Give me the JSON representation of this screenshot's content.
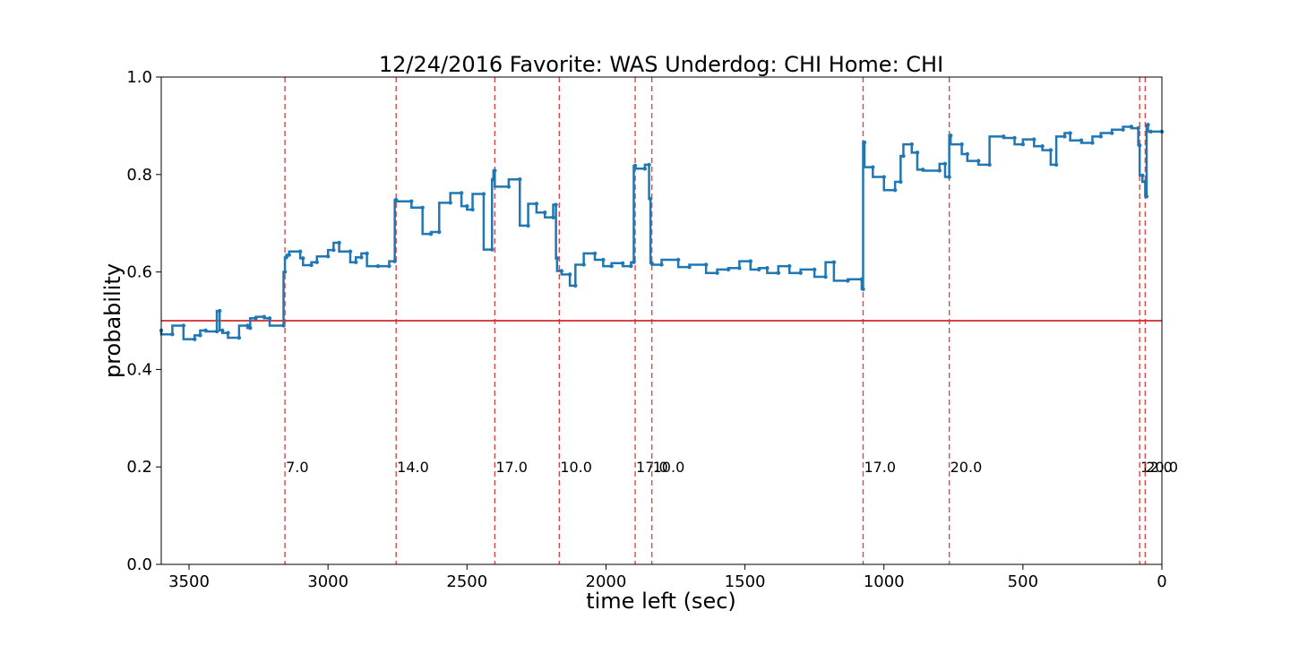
{
  "chart_data": {
    "type": "line",
    "title": "12/24/2016 Favorite: WAS Underdog: CHI Home: CHI",
    "xlabel": "time left (sec)",
    "ylabel": "probability",
    "xlim": [
      3600,
      0
    ],
    "ylim": [
      0.0,
      1.0
    ],
    "x_ticks": [
      3500,
      3000,
      2500,
      2000,
      1500,
      1000,
      500,
      0
    ],
    "y_ticks": [
      0.0,
      0.2,
      0.4,
      0.6,
      0.8,
      1.0
    ],
    "x_tick_labels": [
      "3500",
      "3000",
      "2500",
      "2000",
      "1500",
      "1000",
      "500",
      "0"
    ],
    "y_tick_labels": [
      "0.0",
      "0.2",
      "0.4",
      "0.6",
      "0.8",
      "1.0"
    ],
    "grid": false,
    "reference_line": {
      "y": 0.5,
      "color": "#d62728"
    },
    "series": [
      {
        "color": "#1f77b4",
        "x": [
          3600,
          3560,
          3520,
          3480,
          3460,
          3440,
          3400,
          3390,
          3380,
          3360,
          3320,
          3290,
          3280,
          3260,
          3230,
          3210,
          3160,
          3155,
          3150,
          3140,
          3100,
          3090,
          3060,
          3040,
          3000,
          2980,
          2960,
          2920,
          2900,
          2880,
          2860,
          2820,
          2780,
          2760,
          2755,
          2700,
          2660,
          2630,
          2600,
          2560,
          2520,
          2500,
          2480,
          2440,
          2410,
          2405,
          2400,
          2350,
          2310,
          2280,
          2250,
          2220,
          2190,
          2180,
          2176,
          2160,
          2130,
          2110,
          2080,
          2040,
          2010,
          1980,
          1940,
          1910,
          1900,
          1895,
          1860,
          1845,
          1840,
          1835,
          1800,
          1740,
          1700,
          1640,
          1600,
          1560,
          1520,
          1480,
          1450,
          1420,
          1380,
          1340,
          1300,
          1250,
          1210,
          1180,
          1130,
          1080,
          1075,
          1070,
          1040,
          1000,
          960,
          940,
          930,
          900,
          880,
          860,
          800,
          780,
          765,
          760,
          720,
          700,
          660,
          620,
          570,
          530,
          500,
          460,
          430,
          400,
          380,
          350,
          330,
          290,
          250,
          220,
          180,
          140,
          110,
          85,
          80,
          70,
          60,
          55,
          50,
          40,
          0
        ],
        "y": [
          0.48,
          0.472,
          0.49,
          0.462,
          0.47,
          0.48,
          0.478,
          0.52,
          0.48,
          0.475,
          0.465,
          0.49,
          0.485,
          0.505,
          0.508,
          0.505,
          0.49,
          0.6,
          0.63,
          0.635,
          0.642,
          0.628,
          0.614,
          0.62,
          0.632,
          0.645,
          0.66,
          0.642,
          0.62,
          0.63,
          0.638,
          0.612,
          0.612,
          0.622,
          0.748,
          0.745,
          0.732,
          0.678,
          0.682,
          0.742,
          0.762,
          0.735,
          0.728,
          0.76,
          0.646,
          0.79,
          0.808,
          0.775,
          0.79,
          0.695,
          0.74,
          0.722,
          0.712,
          0.738,
          0.628,
          0.602,
          0.595,
          0.572,
          0.615,
          0.638,
          0.625,
          0.612,
          0.618,
          0.612,
          0.62,
          0.818,
          0.812,
          0.82,
          0.75,
          0.618,
          0.615,
          0.625,
          0.61,
          0.615,
          0.598,
          0.605,
          0.608,
          0.622,
          0.605,
          0.608,
          0.598,
          0.612,
          0.598,
          0.605,
          0.59,
          0.62,
          0.582,
          0.585,
          0.565,
          0.866,
          0.815,
          0.795,
          0.768,
          0.785,
          0.838,
          0.862,
          0.845,
          0.81,
          0.808,
          0.822,
          0.795,
          0.88,
          0.862,
          0.842,
          0.828,
          0.82,
          0.878,
          0.875,
          0.862,
          0.872,
          0.858,
          0.85,
          0.82,
          0.878,
          0.885,
          0.87,
          0.865,
          0.878,
          0.885,
          0.892,
          0.898,
          0.895,
          0.86,
          0.798,
          0.785,
          0.755,
          0.902,
          0.888,
          0.888
        ]
      }
    ],
    "vertical_markers": {
      "color": "#d62728",
      "annotation_y": 0.2,
      "items": [
        {
          "x": 3155,
          "label": "7.0"
        },
        {
          "x": 2755,
          "label": "14.0"
        },
        {
          "x": 2400,
          "label": "17.0"
        },
        {
          "x": 2168,
          "label": "10.0"
        },
        {
          "x": 1895,
          "label": "17.0"
        },
        {
          "x": 1835,
          "label": "10.0"
        },
        {
          "x": 1075,
          "label": "17.0"
        },
        {
          "x": 765,
          "label": "20.0"
        },
        {
          "x": 80,
          "label": "12.0"
        },
        {
          "x": 60,
          "label": "20.0"
        }
      ]
    }
  }
}
